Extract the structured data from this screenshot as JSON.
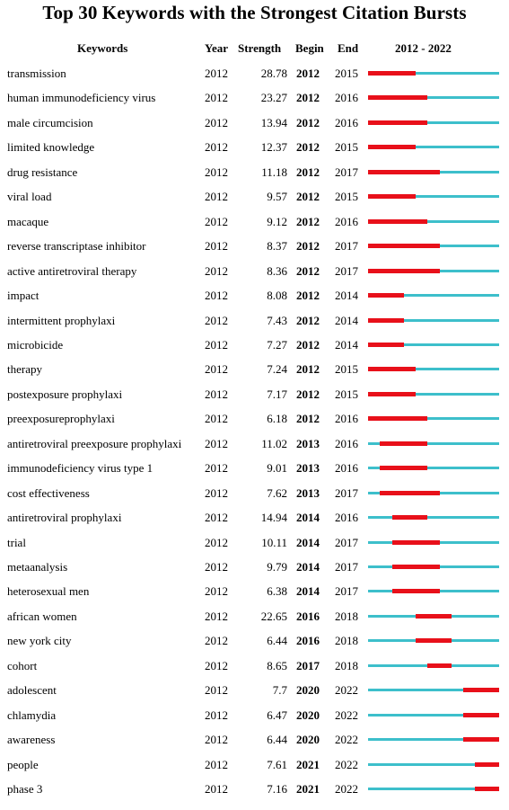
{
  "chart_data": {
    "type": "table",
    "title": "Top 30 Keywords with the Strongest Citation Bursts",
    "columns": [
      "Keywords",
      "Year",
      "Strength",
      "Begin",
      "End",
      "2012 - 2022"
    ],
    "range_start": 2012,
    "range_end": 2022,
    "colors": {
      "burst": "#e8101a",
      "baseline": "#3dbfcb"
    },
    "rows": [
      {
        "keyword": "transmission",
        "year": "2012",
        "strength": "28.78",
        "begin": "2012",
        "end": "2015"
      },
      {
        "keyword": "human immunodeficiency virus",
        "year": "2012",
        "strength": "23.27",
        "begin": "2012",
        "end": "2016"
      },
      {
        "keyword": "male circumcision",
        "year": "2012",
        "strength": "13.94",
        "begin": "2012",
        "end": "2016"
      },
      {
        "keyword": "limited knowledge",
        "year": "2012",
        "strength": "12.37",
        "begin": "2012",
        "end": "2015"
      },
      {
        "keyword": "drug resistance",
        "year": "2012",
        "strength": "11.18",
        "begin": "2012",
        "end": "2017"
      },
      {
        "keyword": "viral load",
        "year": "2012",
        "strength": "9.57",
        "begin": "2012",
        "end": "2015"
      },
      {
        "keyword": "macaque",
        "year": "2012",
        "strength": "9.12",
        "begin": "2012",
        "end": "2016"
      },
      {
        "keyword": "reverse transcriptase inhibitor",
        "year": "2012",
        "strength": "8.37",
        "begin": "2012",
        "end": "2017"
      },
      {
        "keyword": "active antiretroviral therapy",
        "year": "2012",
        "strength": "8.36",
        "begin": "2012",
        "end": "2017"
      },
      {
        "keyword": "impact",
        "year": "2012",
        "strength": "8.08",
        "begin": "2012",
        "end": "2014"
      },
      {
        "keyword": "intermittent prophylaxi",
        "year": "2012",
        "strength": "7.43",
        "begin": "2012",
        "end": "2014"
      },
      {
        "keyword": "microbicide",
        "year": "2012",
        "strength": "7.27",
        "begin": "2012",
        "end": "2014"
      },
      {
        "keyword": "therapy",
        "year": "2012",
        "strength": "7.24",
        "begin": "2012",
        "end": "2015"
      },
      {
        "keyword": "postexposure prophylaxi",
        "year": "2012",
        "strength": "7.17",
        "begin": "2012",
        "end": "2015"
      },
      {
        "keyword": "preexposureprophylaxi",
        "year": "2012",
        "strength": "6.18",
        "begin": "2012",
        "end": "2016"
      },
      {
        "keyword": "antiretroviral preexposure prophylaxi",
        "year": "2012",
        "strength": "11.02",
        "begin": "2013",
        "end": "2016"
      },
      {
        "keyword": "immunodeficiency virus type 1",
        "year": "2012",
        "strength": "9.01",
        "begin": "2013",
        "end": "2016"
      },
      {
        "keyword": "cost effectiveness",
        "year": "2012",
        "strength": "7.62",
        "begin": "2013",
        "end": "2017"
      },
      {
        "keyword": "antiretroviral prophylaxi",
        "year": "2012",
        "strength": "14.94",
        "begin": "2014",
        "end": "2016"
      },
      {
        "keyword": "trial",
        "year": "2012",
        "strength": "10.11",
        "begin": "2014",
        "end": "2017"
      },
      {
        "keyword": "metaanalysis",
        "year": "2012",
        "strength": "9.79",
        "begin": "2014",
        "end": "2017"
      },
      {
        "keyword": "heterosexual men",
        "year": "2012",
        "strength": "6.38",
        "begin": "2014",
        "end": "2017"
      },
      {
        "keyword": "african women",
        "year": "2012",
        "strength": "22.65",
        "begin": "2016",
        "end": "2018"
      },
      {
        "keyword": "new york city",
        "year": "2012",
        "strength": "6.44",
        "begin": "2016",
        "end": "2018"
      },
      {
        "keyword": "cohort",
        "year": "2012",
        "strength": "8.65",
        "begin": "2017",
        "end": "2018"
      },
      {
        "keyword": "adolescent",
        "year": "2012",
        "strength": "7.7",
        "begin": "2020",
        "end": "2022"
      },
      {
        "keyword": "chlamydia",
        "year": "2012",
        "strength": "6.47",
        "begin": "2020",
        "end": "2022"
      },
      {
        "keyword": "awareness",
        "year": "2012",
        "strength": "6.44",
        "begin": "2020",
        "end": "2022"
      },
      {
        "keyword": "people",
        "year": "2012",
        "strength": "7.61",
        "begin": "2021",
        "end": "2022"
      },
      {
        "keyword": "phase 3",
        "year": "2012",
        "strength": "7.16",
        "begin": "2021",
        "end": "2022"
      }
    ]
  }
}
